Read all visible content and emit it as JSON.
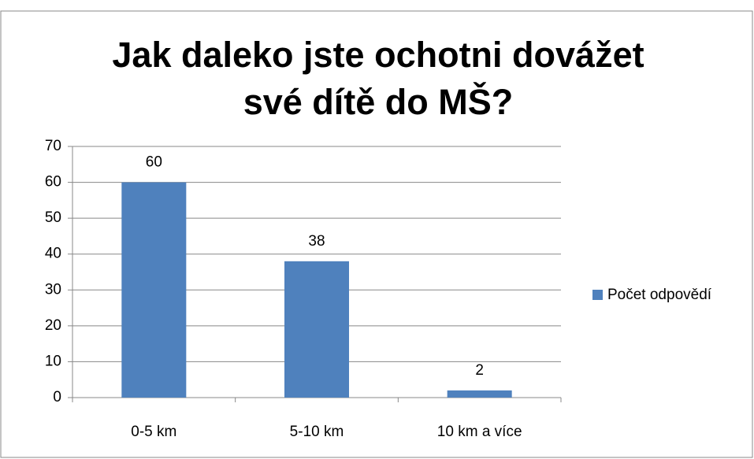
{
  "chart_data": {
    "type": "bar",
    "title": "Jak daleko jste ochotni dovážet své dítě do MŠ?",
    "categories": [
      "0-5 km",
      "5-10 km",
      "10 km a více"
    ],
    "series": [
      {
        "name": "Počet odpovědí",
        "color": "#4f81bd",
        "values": [
          60,
          38,
          2
        ]
      }
    ],
    "ylim": [
      0,
      70
    ],
    "yticks": [
      0,
      10,
      20,
      30,
      40,
      50,
      60,
      70
    ],
    "grid": true,
    "legend": "right"
  }
}
